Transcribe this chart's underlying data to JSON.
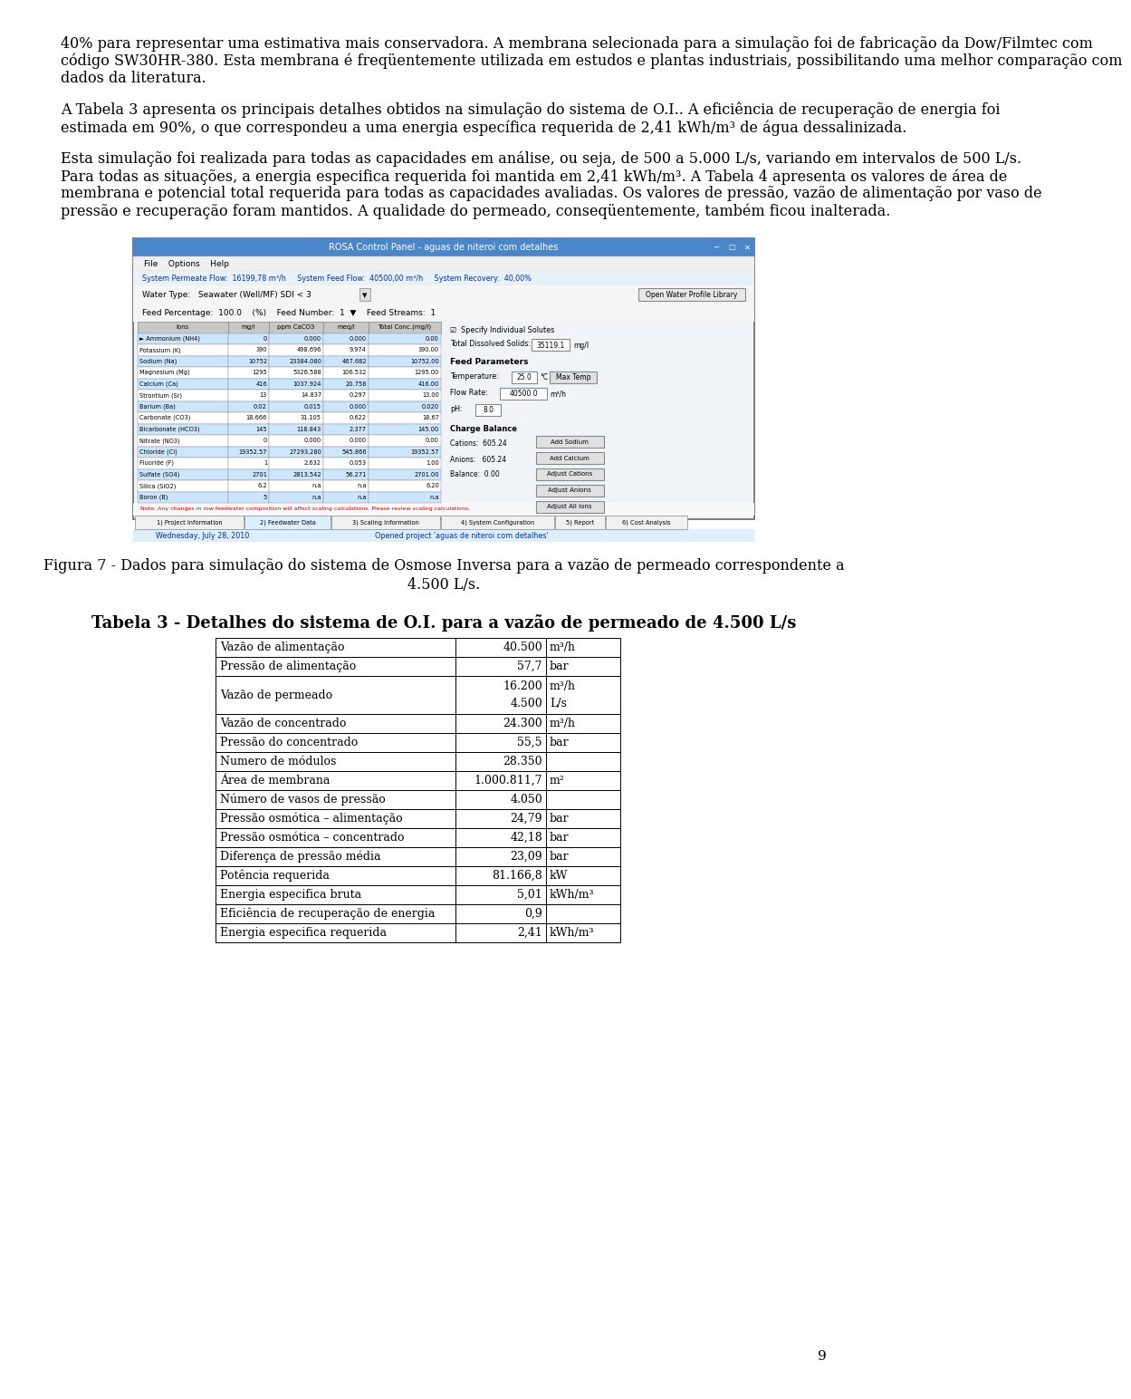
{
  "body_text_paragraphs": [
    "40% para representar uma estimativa mais conservadora. A membrana selecionada para a simulação foi de fabricação da Dow/Filmtec com código SW30HR-380. Esta membrana é freqüentemente utilizada em estudos e plantas industriais, possibilitando uma melhor comparação com dados da literatura.",
    "A Tabela 3 apresenta os principais detalhes obtidos na simulação do sistema de O.I.. A eficiência de recuperação de energia foi estimada em 90%, o que correspondeu a uma energia específica requerida de 2,41 kWh/m³ de água dessalinizada.",
    "Esta simulação foi realizada para todas as capacidades em análise, ou seja, de 500 a 5.000 L/s, variando em intervalos de 500 L/s. Para todas as situações, a energia especifica requerida foi mantida em 2,41 kWh/m³. A Tabela 4 apresenta os valores de área de membrana e potencial total requerida para todas as capacidades avaliadas. Os valores de pressão, vazão de alimentação por vaso de pressão e recuperação foram mantidos. A qualidade do permeado, conseqüentemente, também ficou inalterada."
  ],
  "figure_caption_line1": "Figura 7 - Dados para simulação do sistema de Osmose Inversa para a vazão de permeado correspondente a",
  "figure_caption_line2": "4.500 L/s.",
  "table_title": "Tabela 3 - Detalhes do sistema de O.I. para a vazão de permeado de 4.500 L/s",
  "table_rows": [
    [
      "Vazão de alimentação",
      "40.500",
      "m³/h"
    ],
    [
      "Pressão de alimentação",
      "57,7",
      "bar"
    ],
    [
      "Vazão de permeado",
      "16.200\n4.500",
      "m³/h\nL/s"
    ],
    [
      "Vazão de concentrado",
      "24.300",
      "m³/h"
    ],
    [
      "Pressão do concentrado",
      "55,5",
      "bar"
    ],
    [
      "Numero de módulos",
      "28.350",
      ""
    ],
    [
      "Área de membrana",
      "1.000.811,7",
      "m²"
    ],
    [
      "Número de vasos de pressão",
      "4.050",
      ""
    ],
    [
      "Pressão osmótica – alimentação",
      "24,79",
      "bar"
    ],
    [
      "Pressão osmótica – concentrado",
      "42,18",
      "bar"
    ],
    [
      "Diferença de pressão média",
      "23,09",
      "bar"
    ],
    [
      "Potência requerida",
      "81.166,8",
      "kW"
    ],
    [
      "Energia especifica bruta",
      "5,01",
      "kWh/m³"
    ],
    [
      "Eficiência de recuperação de energia",
      "0,9",
      ""
    ],
    [
      "Energia especifica requerida",
      "2,41",
      "kWh/m³"
    ]
  ],
  "page_number": "9",
  "bg_color": "#ffffff",
  "text_color": "#000000"
}
